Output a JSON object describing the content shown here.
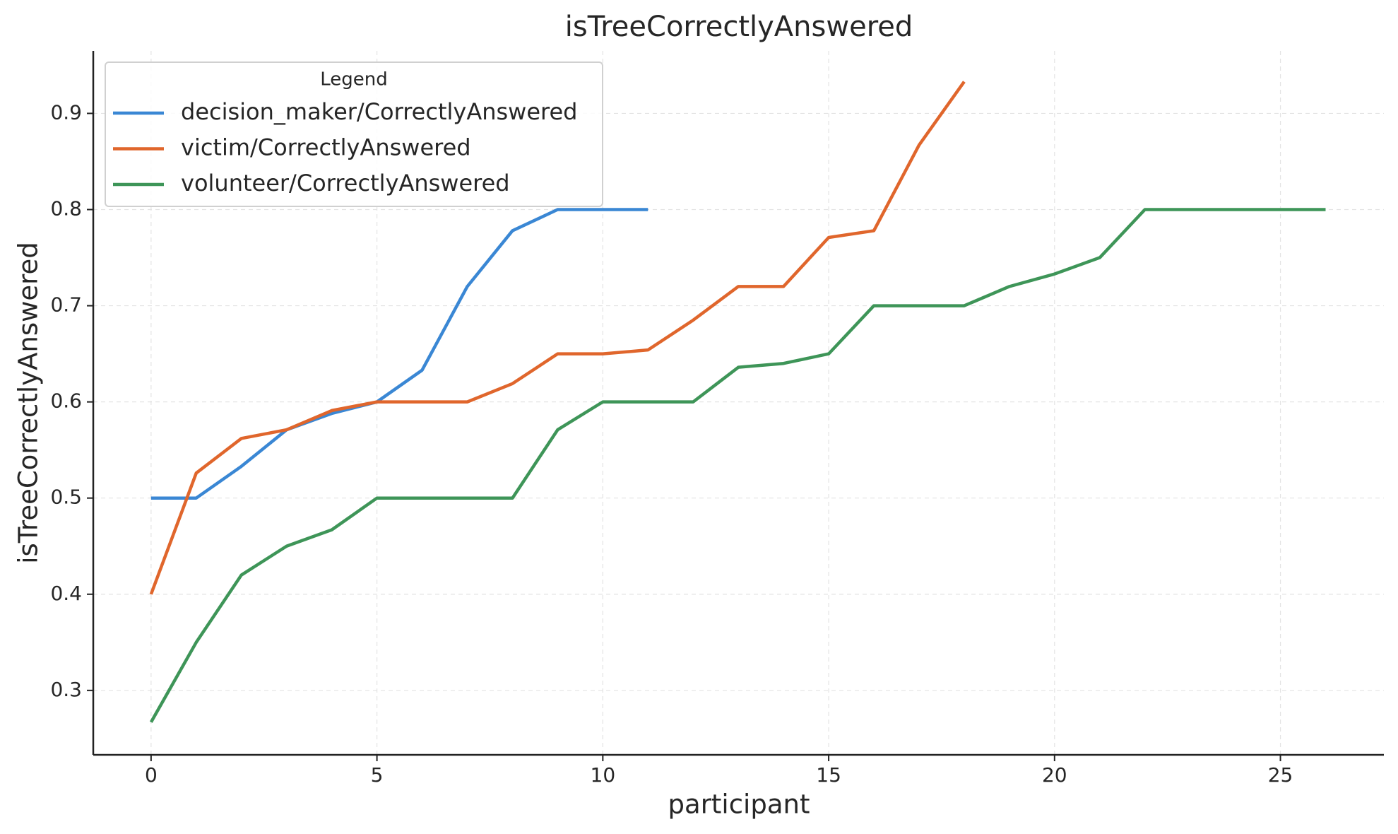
{
  "chart_data": {
    "type": "line",
    "title": "isTreeCorrectlyAnswered",
    "x_label": "participant",
    "y_label": "isTreeCorrectlyAnswered",
    "legend_title": "Legend",
    "legend_position": "upper left",
    "grid": true,
    "x": [
      0,
      1,
      2,
      3,
      4,
      5,
      6,
      7,
      8,
      9,
      10,
      11,
      12,
      13,
      14,
      15,
      16,
      17,
      18,
      19,
      20,
      21,
      22,
      23,
      24,
      25,
      26
    ],
    "series": [
      {
        "name": "decision_maker/CorrectlyAnswered",
        "color": "#3a87d4",
        "values": [
          0.5,
          0.5,
          0.533,
          0.571,
          0.588,
          0.6,
          0.633,
          0.72,
          0.778,
          0.8,
          0.8,
          0.8,
          null,
          null,
          null,
          null,
          null,
          null,
          null,
          null,
          null,
          null,
          null,
          null,
          null,
          null,
          null
        ]
      },
      {
        "name": "victim/CorrectlyAnswered",
        "color": "#e0662c",
        "values": [
          0.4,
          0.526,
          0.562,
          0.571,
          0.591,
          0.6,
          0.6,
          0.6,
          0.619,
          0.65,
          0.65,
          0.654,
          0.685,
          0.72,
          0.72,
          0.771,
          0.778,
          0.867,
          0.933,
          null,
          null,
          null,
          null,
          null,
          null,
          null,
          null
        ]
      },
      {
        "name": "volunteer/CorrectlyAnswered",
        "color": "#3e9558",
        "values": [
          0.267,
          0.35,
          0.42,
          0.45,
          0.467,
          0.5,
          0.5,
          0.5,
          0.5,
          0.571,
          0.6,
          0.6,
          0.6,
          0.636,
          0.64,
          0.65,
          0.7,
          0.7,
          0.7,
          0.72,
          0.733,
          0.75,
          0.8,
          0.8,
          0.8,
          0.8,
          0.8
        ]
      }
    ],
    "xlim": [
      -1.28,
      27.29
    ],
    "ylim": [
      0.233,
      0.965
    ],
    "xticks": [
      0,
      5,
      10,
      15,
      20,
      25
    ],
    "yticks": [
      0.3,
      0.4,
      0.5,
      0.6,
      0.7,
      0.8,
      0.9
    ]
  }
}
